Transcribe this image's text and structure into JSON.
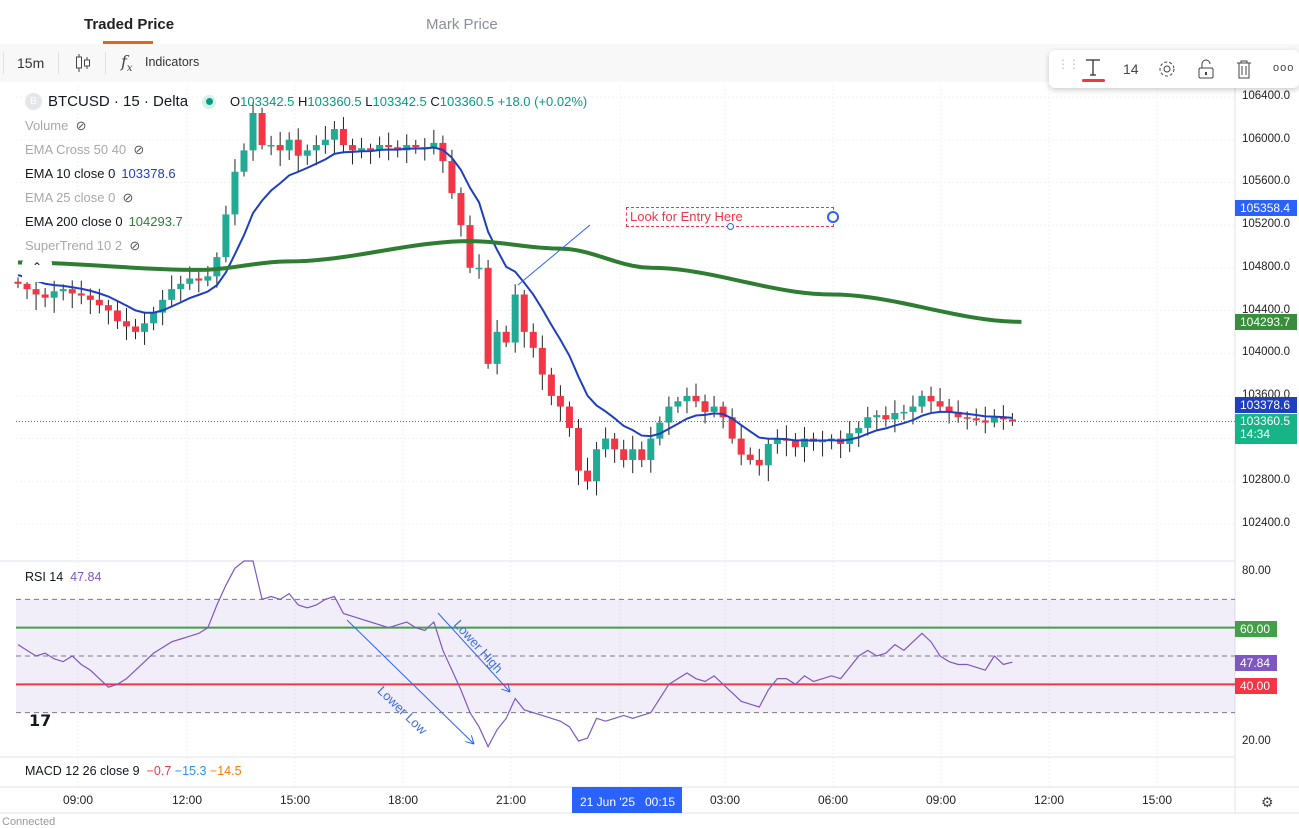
{
  "tabs": [
    {
      "label": "Traded Price",
      "active": true
    },
    {
      "label": "Mark Price",
      "active": false
    }
  ],
  "toolbar": {
    "interval": "15m",
    "chart_type_icon": "candles-icon",
    "indicators_label": "Indicators"
  },
  "drawing_toolbar": {
    "font_size": "14",
    "icons": [
      "drag-handle-icon",
      "text-color-icon",
      "gear-icon",
      "unlock-icon",
      "trash-icon",
      "more-icon"
    ],
    "text_color": "#f23645"
  },
  "symbol": {
    "title": "BTCUSD · 15 · Delta",
    "logo": "B",
    "o_label": "O",
    "o": "103342.5",
    "h_label": "H",
    "h": "103360.5",
    "l_label": "L",
    "l": "103342.5",
    "c_label": "C",
    "c": "103360.5",
    "change": "+18.0 (+0.02%)"
  },
  "indicators": [
    {
      "name": "Volume",
      "value": "",
      "hidden": true
    },
    {
      "name": "EMA Cross 50 40",
      "value": "",
      "hidden": true
    },
    {
      "name": "EMA 10 close 0",
      "value": "103378.6",
      "hidden": false,
      "color": "#1e3fbf"
    },
    {
      "name": "EMA 25 close 0",
      "value": "",
      "hidden": true
    },
    {
      "name": "EMA 200 close 0",
      "value": "104293.7",
      "hidden": false,
      "color": "#2e7d32"
    },
    {
      "name": "SuperTrend 10 2",
      "value": "",
      "hidden": true
    }
  ],
  "rsi_legend": {
    "name": "RSI 14",
    "value": "47.84"
  },
  "macd_legend": {
    "name": "MACD 12 26 close 9",
    "v1": "−0.7",
    "v2": "−15.3",
    "v3": "−14.5"
  },
  "price_axis": [
    "106400.0",
    "106000.0",
    "105600.0",
    "105200.0",
    "104800.0",
    "104400.0",
    "104000.0",
    "103600.0",
    "102800.0",
    "102400.0"
  ],
  "price_labels": {
    "drawing": "105358.4",
    "ema200": "104293.7",
    "ema10": "103378.6",
    "last": "103360.5",
    "countdown": "14:34"
  },
  "rsi_axis": [
    "80.00",
    "20.00"
  ],
  "rsi_labels": {
    "upper": "60.00",
    "current": "47.84",
    "lower": "40.00"
  },
  "time_axis": [
    "09:00",
    "12:00",
    "15:00",
    "18:00",
    "21:00",
    "03:00",
    "06:00",
    "09:00",
    "12:00",
    "15:00"
  ],
  "crosshair_time": "21 Jun '25   00:15",
  "status": "Connected",
  "annotations": {
    "text_box": "Look for Entry Here",
    "lower_low": "Lower Low",
    "lower_high": "Lower High"
  },
  "colors": {
    "up": "#089981",
    "up_fill": "#22ab94",
    "down": "#f23645",
    "ema10": "#1e3fbf",
    "ema200": "#2e7d32",
    "rsi": "#7e57c2",
    "accent": "#2962ff"
  },
  "chart_data": {
    "type": "candlestick",
    "symbol": "BTCUSD",
    "interval": "15m",
    "ylim": [
      102300,
      106500
    ],
    "closes": [
      104650,
      104600,
      104550,
      104520,
      104580,
      104600,
      104560,
      104540,
      104500,
      104450,
      104400,
      104300,
      104250,
      104200,
      104280,
      104380,
      104500,
      104600,
      104650,
      104700,
      104680,
      104720,
      104900,
      105300,
      105700,
      105900,
      106250,
      105950,
      105950,
      105900,
      106000,
      105850,
      105900,
      105950,
      106000,
      106100,
      105950,
      105900,
      105920,
      105900,
      105950,
      105930,
      105900,
      105950,
      105930,
      105920,
      105970,
      105800,
      105500,
      105200,
      104800,
      104800,
      103900,
      104200,
      104100,
      104550,
      104200,
      104050,
      103800,
      103600,
      103500,
      103300,
      102900,
      102800,
      103100,
      103200,
      103100,
      103000,
      103100,
      103000,
      103200,
      103350,
      103500,
      103550,
      103600,
      103550,
      103450,
      103500,
      103400,
      103200,
      103050,
      103000,
      102950,
      103150,
      103200,
      103180,
      103120,
      103200,
      103170,
      103180,
      103200,
      103150,
      103250,
      103300,
      103400,
      103420,
      103380,
      103440,
      103450,
      103500,
      103600,
      103550,
      103500,
      103450,
      103400,
      103390,
      103370,
      103350,
      103400,
      103380,
      103360
    ],
    "ema200_points": [
      [
        0,
        104850
      ],
      [
        20,
        104780
      ],
      [
        30,
        104860
      ],
      [
        50,
        105050
      ],
      [
        60,
        104980
      ],
      [
        70,
        104800
      ],
      [
        90,
        104550
      ],
      [
        111,
        104293.7
      ]
    ],
    "rsi": [
      54,
      52,
      50,
      51,
      49,
      48,
      50,
      47,
      45,
      42,
      39,
      40,
      42,
      45,
      48,
      51,
      53,
      55,
      56,
      57,
      58,
      60,
      68,
      75,
      81,
      85,
      87,
      70,
      71,
      70,
      72,
      68,
      67,
      68,
      70,
      71,
      65,
      64,
      63,
      62,
      61,
      60,
      61,
      62,
      60,
      59,
      62,
      52,
      45,
      38,
      30,
      25,
      18,
      24,
      28,
      35,
      31,
      30,
      29,
      28,
      27,
      25,
      20,
      21,
      28,
      27,
      28,
      29,
      28,
      29,
      30,
      35,
      40,
      42,
      44,
      42,
      41,
      43,
      40,
      37,
      34,
      33,
      32,
      38,
      42,
      42,
      40,
      43,
      41,
      42,
      43,
      42,
      46,
      50,
      52,
      50,
      51,
      54,
      52,
      55,
      58,
      55,
      50,
      48,
      47,
      47,
      46,
      45,
      50,
      47,
      47.84
    ],
    "rsi_levels": {
      "upper_band": 70,
      "upper": 60,
      "mid": 50,
      "lower": 40,
      "lower_band": 30
    },
    "rsi_ylim": [
      20,
      80
    ]
  }
}
